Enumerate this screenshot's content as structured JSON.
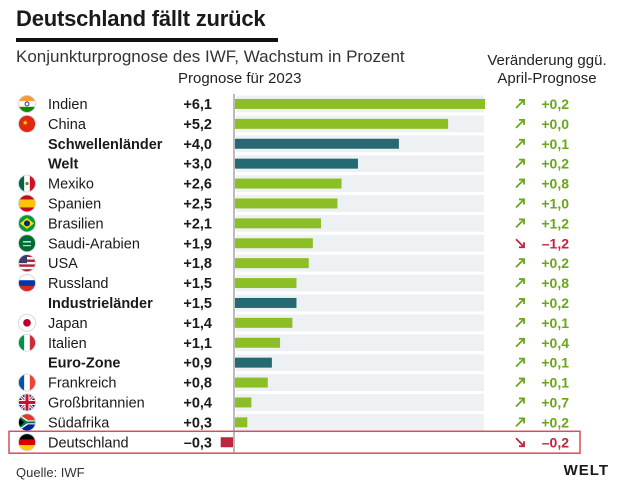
{
  "title": "Deutschland fällt zurück",
  "subtitle": "Konjunkturprognose des IWF, Wachstum in Prozent",
  "column_header": "Prognose für 2023",
  "change_header_line1": "Veränderung ggü.",
  "change_header_line2": "April-Prognose",
  "source": "Quelle: IWF",
  "brand": "WELT",
  "colors": {
    "country_bar": "#8cbf26",
    "aggregate_bar": "#256a73",
    "negative": "#c0243c",
    "positive_change": "#6aa51d",
    "highlight_border": "#d94c5c",
    "row_shade": "#eef1f4"
  },
  "chart_data": {
    "type": "bar",
    "orientation": "horizontal",
    "title": "Deutschland fällt zurück",
    "xlabel": "Prognose für 2023",
    "xlim": [
      -0.3,
      6.1
    ],
    "rows": [
      {
        "label": "Indien",
        "value": 6.1,
        "value_text": "+6,1",
        "change": 0.2,
        "change_text": "+0,2",
        "aggregate": false,
        "flag": "india-flag-icon"
      },
      {
        "label": "China",
        "value": 5.2,
        "value_text": "+5,2",
        "change": 0.0,
        "change_text": "+0,0",
        "aggregate": false,
        "flag": "china-flag-icon"
      },
      {
        "label": "Schwellenländer",
        "value": 4.0,
        "value_text": "+4,0",
        "change": 0.1,
        "change_text": "+0,1",
        "aggregate": true,
        "flag": ""
      },
      {
        "label": "Welt",
        "value": 3.0,
        "value_text": "+3,0",
        "change": 0.2,
        "change_text": "+0,2",
        "aggregate": true,
        "flag": ""
      },
      {
        "label": "Mexiko",
        "value": 2.6,
        "value_text": "+2,6",
        "change": 0.8,
        "change_text": "+0,8",
        "aggregate": false,
        "flag": "mexico-flag-icon"
      },
      {
        "label": "Spanien",
        "value": 2.5,
        "value_text": "+2,5",
        "change": 1.0,
        "change_text": "+1,0",
        "aggregate": false,
        "flag": "spain-flag-icon"
      },
      {
        "label": "Brasilien",
        "value": 2.1,
        "value_text": "+2,1",
        "change": 1.2,
        "change_text": "+1,2",
        "aggregate": false,
        "flag": "brazil-flag-icon"
      },
      {
        "label": "Saudi-Arabien",
        "value": 1.9,
        "value_text": "+1,9",
        "change": -1.2,
        "change_text": "–1,2",
        "aggregate": false,
        "flag": "saudi-arabia-flag-icon"
      },
      {
        "label": "USA",
        "value": 1.8,
        "value_text": "+1,8",
        "change": 0.2,
        "change_text": "+0,2",
        "aggregate": false,
        "flag": "usa-flag-icon"
      },
      {
        "label": "Russland",
        "value": 1.5,
        "value_text": "+1,5",
        "change": 0.8,
        "change_text": "+0,8",
        "aggregate": false,
        "flag": "russia-flag-icon"
      },
      {
        "label": "Industrieländer",
        "value": 1.5,
        "value_text": "+1,5",
        "change": 0.2,
        "change_text": "+0,2",
        "aggregate": true,
        "flag": ""
      },
      {
        "label": "Japan",
        "value": 1.4,
        "value_text": "+1,4",
        "change": 0.1,
        "change_text": "+0,1",
        "aggregate": false,
        "flag": "japan-flag-icon"
      },
      {
        "label": "Italien",
        "value": 1.1,
        "value_text": "+1,1",
        "change": 0.4,
        "change_text": "+0,4",
        "aggregate": false,
        "flag": "italy-flag-icon"
      },
      {
        "label": "Euro-Zone",
        "value": 0.9,
        "value_text": "+0,9",
        "change": 0.1,
        "change_text": "+0,1",
        "aggregate": true,
        "flag": ""
      },
      {
        "label": "Frankreich",
        "value": 0.8,
        "value_text": "+0,8",
        "change": 0.1,
        "change_text": "+0,1",
        "aggregate": false,
        "flag": "france-flag-icon"
      },
      {
        "label": "Großbritannien",
        "value": 0.4,
        "value_text": "+0,4",
        "change": 0.7,
        "change_text": "+0,7",
        "aggregate": false,
        "flag": "uk-flag-icon"
      },
      {
        "label": "Südafrika",
        "value": 0.3,
        "value_text": "+0,3",
        "change": 0.2,
        "change_text": "+0,2",
        "aggregate": false,
        "flag": "south-africa-flag-icon"
      },
      {
        "label": "Deutschland",
        "value": -0.3,
        "value_text": "–0,3",
        "change": -0.2,
        "change_text": "–0,2",
        "aggregate": false,
        "flag": "germany-flag-icon",
        "highlighted": true
      }
    ]
  }
}
